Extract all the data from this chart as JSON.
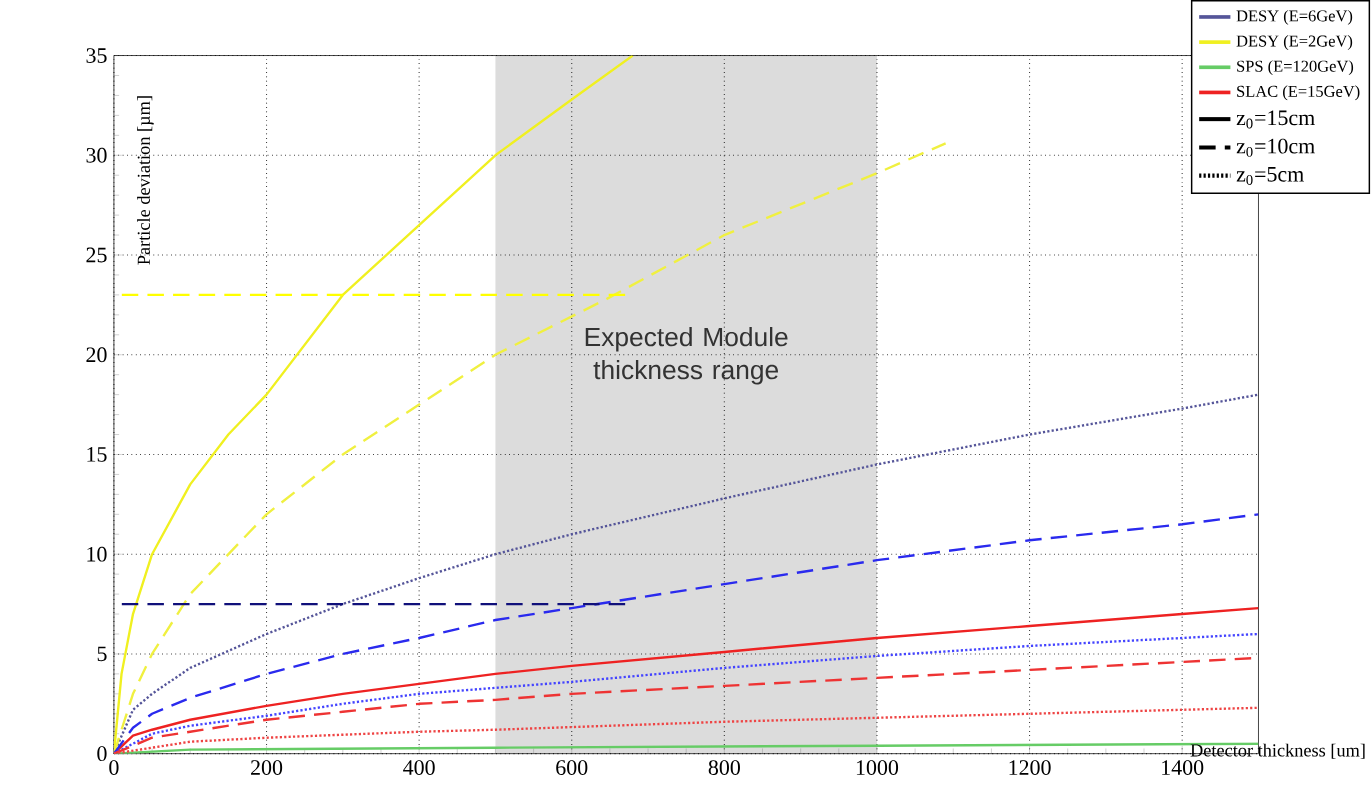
{
  "chart_data": {
    "type": "line",
    "xlabel": "Detector thickness [um]",
    "ylabel": "Particle deviation [µm]",
    "xlim": [
      0,
      1500
    ],
    "ylim": [
      0,
      35
    ],
    "xticks": [
      0,
      200,
      400,
      600,
      800,
      1000,
      1200,
      1400
    ],
    "yticks": [
      0,
      5,
      10,
      15,
      20,
      25,
      30,
      35
    ],
    "grid": true,
    "legend": "top right",
    "marker": "none",
    "bands": [
      {
        "axis": "x",
        "from": 500,
        "to": 1000,
        "label": "Expected Module thickness range",
        "color": "#dcdcdc"
      }
    ],
    "annotations": [
      "z$_{0}$=15cm",
      "z$_{0}$=10cm",
      "z$_{0}$=5cm"
    ],
    "series": [
      {
        "name": "DESY  (E=6GeV)",
        "color": "#555599",
        "line_style": "dotted",
        "x": [
          0,
          25,
          50,
          100,
          200,
          300,
          400,
          500,
          600,
          800,
          1000,
          1200,
          1400,
          1500
        ],
        "values": [
          0,
          2.2,
          3,
          4.3,
          6,
          7.5,
          8.8,
          10,
          11,
          12.8,
          14.5,
          16,
          17.3,
          18
        ]
      },
      {
        "name": "DESY  (E=2GeV)",
        "color": "#f0f020",
        "line_style": "solid",
        "x": [
          0,
          10,
          25,
          50,
          100,
          150,
          200,
          300,
          400,
          500,
          600,
          680
        ],
        "values": [
          0,
          4,
          7,
          10,
          13.5,
          16,
          18,
          23,
          26.5,
          30,
          32.8,
          35
        ]
      },
      {
        "name": "SPS    (E=120GeV)",
        "color": "#66cc66",
        "line_style": "solid",
        "x": [
          0,
          100,
          500,
          1000,
          1500
        ],
        "values": [
          0,
          0.2,
          0.3,
          0.4,
          0.5
        ]
      },
      {
        "name": "SLAC  (E=15GeV)",
        "color": "#ee2222",
        "line_style": "solid",
        "x": [
          0,
          25,
          50,
          100,
          200,
          300,
          400,
          500,
          600,
          800,
          1000,
          1200,
          1400,
          1500
        ],
        "values": [
          0,
          0.9,
          1.2,
          1.7,
          2.4,
          3,
          3.5,
          4,
          4.4,
          5.1,
          5.8,
          6.4,
          7,
          7.3
        ]
      },
      {
        "color": "#f0f040",
        "line_style": "dashed",
        "x": [
          0,
          25,
          50,
          100,
          200,
          300,
          400,
          500,
          646,
          800,
          1000,
          1090
        ],
        "values": [
          0,
          3,
          5,
          8,
          12,
          15,
          17.5,
          20,
          22.8,
          26,
          29.1,
          30.6
        ]
      },
      {
        "color": "#2a2aee",
        "line_style": "dashed",
        "x": [
          0,
          25,
          50,
          100,
          200,
          300,
          400,
          500,
          600,
          800,
          1000,
          1200,
          1400,
          1500
        ],
        "values": [
          0,
          1.3,
          2,
          2.8,
          4,
          5,
          5.8,
          6.7,
          7.3,
          8.5,
          9.7,
          10.7,
          11.5,
          12
        ]
      },
      {
        "color": "#4444ff",
        "line_style": "dotted",
        "x": [
          0,
          50,
          100,
          200,
          300,
          400,
          500,
          600,
          800,
          1000,
          1200,
          1400,
          1500
        ],
        "values": [
          0,
          1,
          1.4,
          1.9,
          2.5,
          3,
          3.3,
          3.6,
          4.3,
          4.9,
          5.4,
          5.8,
          6
        ]
      },
      {
        "color": "#ee3333",
        "line_style": "dashed",
        "x": [
          0,
          50,
          100,
          200,
          300,
          400,
          500,
          600,
          800,
          1000,
          1200,
          1400,
          1500
        ],
        "values": [
          0,
          0.8,
          1.1,
          1.7,
          2.1,
          2.5,
          2.7,
          3,
          3.4,
          3.8,
          4.2,
          4.6,
          4.8
        ]
      },
      {
        "color": "#ee4444",
        "line_style": "dotted",
        "x": [
          0,
          100,
          200,
          400,
          500,
          800,
          1000,
          1200,
          1500
        ],
        "values": [
          0,
          0.6,
          0.8,
          1.1,
          1.2,
          1.6,
          1.8,
          2,
          2.3
        ]
      },
      {
        "color": "#ffff00",
        "line_style": "dashed",
        "x": [
          670,
          0
        ],
        "values": [
          23,
          23
        ]
      },
      {
        "color": "#10107a",
        "line_style": "dashed",
        "x": [
          670,
          0
        ],
        "values": [
          7.5,
          7.5
        ]
      }
    ]
  }
}
